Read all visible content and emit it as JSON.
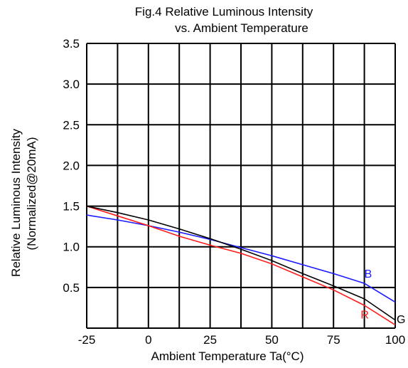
{
  "chart_data": {
    "type": "line",
    "title": "Fig.4 Relative Luminous Intensity",
    "subtitle": "vs. Ambient Temperature",
    "xlabel": "Ambient Temperature Ta(°C)",
    "ylabel": "Relative Luminous Intensity",
    "ylabel2": "(Normalized@20mA)",
    "xlim": [
      -25,
      100
    ],
    "ylim": [
      0,
      3.5
    ],
    "grid": true,
    "x_ticks": [
      "-25",
      "0",
      "25",
      "50",
      "75",
      "100"
    ],
    "y_ticks": [
      "0.5",
      "1.0",
      "1.5",
      "2.0",
      "2.5",
      "3.0",
      "3.5"
    ],
    "series": [
      {
        "name": "B",
        "color": "#1a1aff",
        "x": [
          -25,
          -12.5,
          0,
          12.5,
          25,
          37.5,
          50,
          62.5,
          75,
          87.5,
          100
        ],
        "y": [
          1.39,
          1.33,
          1.26,
          1.18,
          1.09,
          0.99,
          0.89,
          0.78,
          0.67,
          0.55,
          0.32
        ]
      },
      {
        "name": "R",
        "color": "#ff1a1a",
        "x": [
          -25,
          -12.5,
          0,
          12.5,
          25,
          37.5,
          50,
          62.5,
          75,
          87.5,
          100
        ],
        "y": [
          1.5,
          1.38,
          1.26,
          1.13,
          1.02,
          0.92,
          0.79,
          0.63,
          0.47,
          0.28,
          0.04
        ]
      },
      {
        "name": "G",
        "color": "#000000",
        "x": [
          -25,
          -12.5,
          0,
          12.5,
          25,
          37.5,
          50,
          62.5,
          75,
          87.5,
          100
        ],
        "y": [
          1.5,
          1.42,
          1.33,
          1.22,
          1.1,
          0.97,
          0.83,
          0.67,
          0.52,
          0.36,
          0.1
        ]
      }
    ]
  }
}
